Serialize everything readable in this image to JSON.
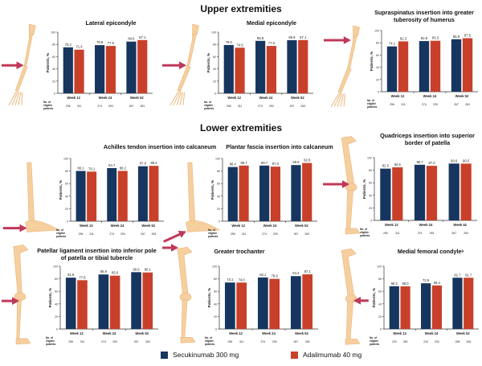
{
  "sections": {
    "upper": "Upper extremities",
    "lower": "Lower extremities"
  },
  "colors": {
    "secukinumab": "#16365f",
    "adalimumab": "#c8402a",
    "arrow": "#c0395a",
    "bone": "#f6cf9e"
  },
  "legend": [
    {
      "label": "Secukinumab 300 mg",
      "color": "#16365f"
    },
    {
      "label": "Adalimumab 40 mg",
      "color": "#c8402a"
    }
  ],
  "chart_data": [
    {
      "type": "bar",
      "title": "Lateral epicondyle",
      "section": "Upper extremities",
      "ylabel": "Patients, %",
      "ylim": [
        0,
        100
      ],
      "yticks": [
        0,
        20,
        40,
        60,
        80,
        100
      ],
      "categories": [
        "Week 12",
        "Week 24",
        "Week 52"
      ],
      "series": [
        {
          "name": "Secukinumab 300 mg",
          "values": [
            75.2,
            78.8,
            84.6
          ]
        },
        {
          "name": "Adalimumab 40 mg",
          "values": [
            71.4,
            77.5,
            87.1
          ]
        }
      ],
      "eligible_label": "No. of eligible patients",
      "eligible": [
        [
          "296",
          "311"
        ],
        [
          "274",
          "293"
        ],
        [
          "267",
          "263"
        ]
      ],
      "illustration": "arm-elbow-lateral"
    },
    {
      "type": "bar",
      "title": "Medial epicondyle",
      "section": "Upper extremities",
      "ylabel": "Patients, %",
      "ylim": [
        0,
        100
      ],
      "yticks": [
        0,
        20,
        40,
        60,
        80,
        100
      ],
      "categories": [
        "Week 12",
        "Week 24",
        "Week 52"
      ],
      "series": [
        {
          "name": "Secukinumab 300 mg",
          "values": [
            79.0,
            85.8,
            86.9
          ]
        },
        {
          "name": "Adalimumab 40 mg",
          "values": [
            74.6,
            77.5,
            87.1
          ]
        }
      ],
      "eligible_label": "No. of eligible patients",
      "eligible": [
        [
          "296",
          "311"
        ],
        [
          "274",
          "293"
        ],
        [
          "267",
          "263"
        ]
      ],
      "illustration": "arm-elbow-medial"
    },
    {
      "type": "bar",
      "title": "Supraspinatus insertion into greater tuberosity of humerus",
      "section": "Upper extremities",
      "ylabel": "Patients, %",
      "ylim": [
        0,
        100
      ],
      "yticks": [
        0,
        20,
        40,
        60,
        80,
        100
      ],
      "categories": [
        "Week 12",
        "Week 24",
        "Week 52"
      ],
      "series": [
        {
          "name": "Secukinumab 300 mg",
          "values": [
            74.1,
            82.8,
            85.8
          ]
        },
        {
          "name": "Adalimumab 40 mg",
          "values": [
            82.3,
            83.3,
            87.5
          ]
        }
      ],
      "eligible_label": "No. of eligible patients",
      "eligible": [
        [
          "296",
          "311"
        ],
        [
          "274",
          "293"
        ],
        [
          "267",
          "263"
        ]
      ],
      "illustration": "arm-shoulder"
    },
    {
      "type": "bar",
      "title": "Achilles tendon insertion into calcaneum",
      "section": "Lower extremities",
      "ylabel": "Patients, %",
      "ylim": [
        0,
        100
      ],
      "yticks": [
        0,
        20,
        40,
        60,
        80,
        100
      ],
      "categories": [
        "Week 12",
        "Week 24",
        "Week 52"
      ],
      "series": [
        {
          "name": "Secukinumab 300 mg",
          "values": [
            80.1,
            84.7,
            87.6
          ]
        },
        {
          "name": "Adalimumab 40 mg",
          "values": [
            79.1,
            80.2,
            88.2
          ]
        }
      ],
      "eligible_label": "No. of eligible patients",
      "eligible": [
        [
          "296",
          "311"
        ],
        [
          "274",
          "293"
        ],
        [
          "267",
          "263"
        ]
      ],
      "illustration": "foot-heel-back"
    },
    {
      "type": "bar",
      "title": "Plantar fascia insertion into calcaneum",
      "section": "Lower extremities",
      "ylabel": "Patients, %",
      "ylim": [
        0,
        100
      ],
      "yticks": [
        0,
        20,
        40,
        60,
        80,
        100
      ],
      "categories": [
        "Week 12",
        "Week 24",
        "Week 52"
      ],
      "series": [
        {
          "name": "Secukinumab 300 mg",
          "values": [
            86.4,
            88.7,
            89.5
          ]
        },
        {
          "name": "Adalimumab 40 mg",
          "values": [
            88.7,
            87.0,
            92.8
          ]
        }
      ],
      "eligible_label": "No. of eligible patients",
      "eligible": [
        [
          "296",
          "311"
        ],
        [
          "274",
          "293"
        ],
        [
          "267",
          "263"
        ]
      ],
      "illustration": "foot-heel-bottom"
    },
    {
      "type": "bar",
      "title": "Quadriceps insertion into superior border of patella",
      "section": "Lower extremities",
      "ylabel": "Patients, %",
      "ylim": [
        0,
        100
      ],
      "yticks": [
        0,
        20,
        40,
        60,
        80,
        100
      ],
      "categories": [
        "Week 12",
        "Week 24",
        "Week 52"
      ],
      "series": [
        {
          "name": "Secukinumab 300 mg",
          "values": [
            82.5,
            88.7,
            90.6
          ]
        },
        {
          "name": "Adalimumab 40 mg",
          "values": [
            84.6,
            87.0,
            90.5
          ]
        }
      ],
      "eligible_label": "No. of eligible patients",
      "eligible": [
        [
          "296",
          "311"
        ],
        [
          "274",
          "293"
        ],
        [
          "267",
          "263"
        ]
      ],
      "illustration": "leg-knee-upper"
    },
    {
      "type": "bar",
      "title": "Patellar ligament insertion into inferior pole of patella or tibial tubercle",
      "section": "Lower extremities",
      "ylabel": "Patients, %",
      "ylim": [
        0,
        100
      ],
      "yticks": [
        0,
        20,
        40,
        60,
        80,
        100
      ],
      "categories": [
        "Week 12",
        "Week 24",
        "Week 52"
      ],
      "series": [
        {
          "name": "Secukinumab 300 mg",
          "values": [
            81.8,
            86.9,
            90.6
          ]
        },
        {
          "name": "Adalimumab 40 mg",
          "values": [
            77.8,
            85.0,
            90.1
          ]
        }
      ],
      "eligible_label": "No. of eligible patients",
      "eligible": [
        [
          "296",
          "311"
        ],
        [
          "274",
          "293"
        ],
        [
          "267",
          "263"
        ]
      ],
      "illustration": "leg-knee-lower"
    },
    {
      "type": "bar",
      "title": "Greater trochanter",
      "section": "Lower extremities",
      "ylabel": "Patients, %",
      "ylim": [
        0,
        100
      ],
      "yticks": [
        0,
        20,
        40,
        60,
        80,
        100
      ],
      "categories": [
        "Week 12",
        "Week 24",
        "Week 52"
      ],
      "series": [
        {
          "name": "Secukinumab 300 mg",
          "values": [
            74.1,
            82.1,
            84.3
          ]
        },
        {
          "name": "Adalimumab 40 mg",
          "values": [
            74.0,
            79.9,
            87.1
          ]
        }
      ],
      "eligible_label": "No. of eligible patients",
      "eligible": [
        [
          "296",
          "311"
        ],
        [
          "274",
          "293"
        ],
        [
          "267",
          "263"
        ]
      ],
      "illustration": "leg-hip"
    },
    {
      "type": "bar",
      "title": "Medial femoral condyleᵃ",
      "section": "Lower extremities",
      "ylabel": "Patients, %",
      "ylim": [
        0,
        100
      ],
      "yticks": [
        0,
        20,
        40,
        60,
        80,
        100
      ],
      "categories": [
        "Week 12",
        "Week 24",
        "Week 52"
      ],
      "series": [
        {
          "name": "Secukinumab 300 mg",
          "values": [
            68.2,
            72.9,
            81.7
          ]
        },
        {
          "name": "Adalimumab 40 mg",
          "values": [
            68.0,
            69.4,
            81.7
          ]
        }
      ],
      "eligible_label": "No. of eligible patients",
      "eligible": [
        [
          "220",
          "250"
        ],
        [
          "210",
          "232"
        ],
        [
          "208",
          "208"
        ]
      ],
      "illustration": "leg-knee-medial"
    }
  ]
}
